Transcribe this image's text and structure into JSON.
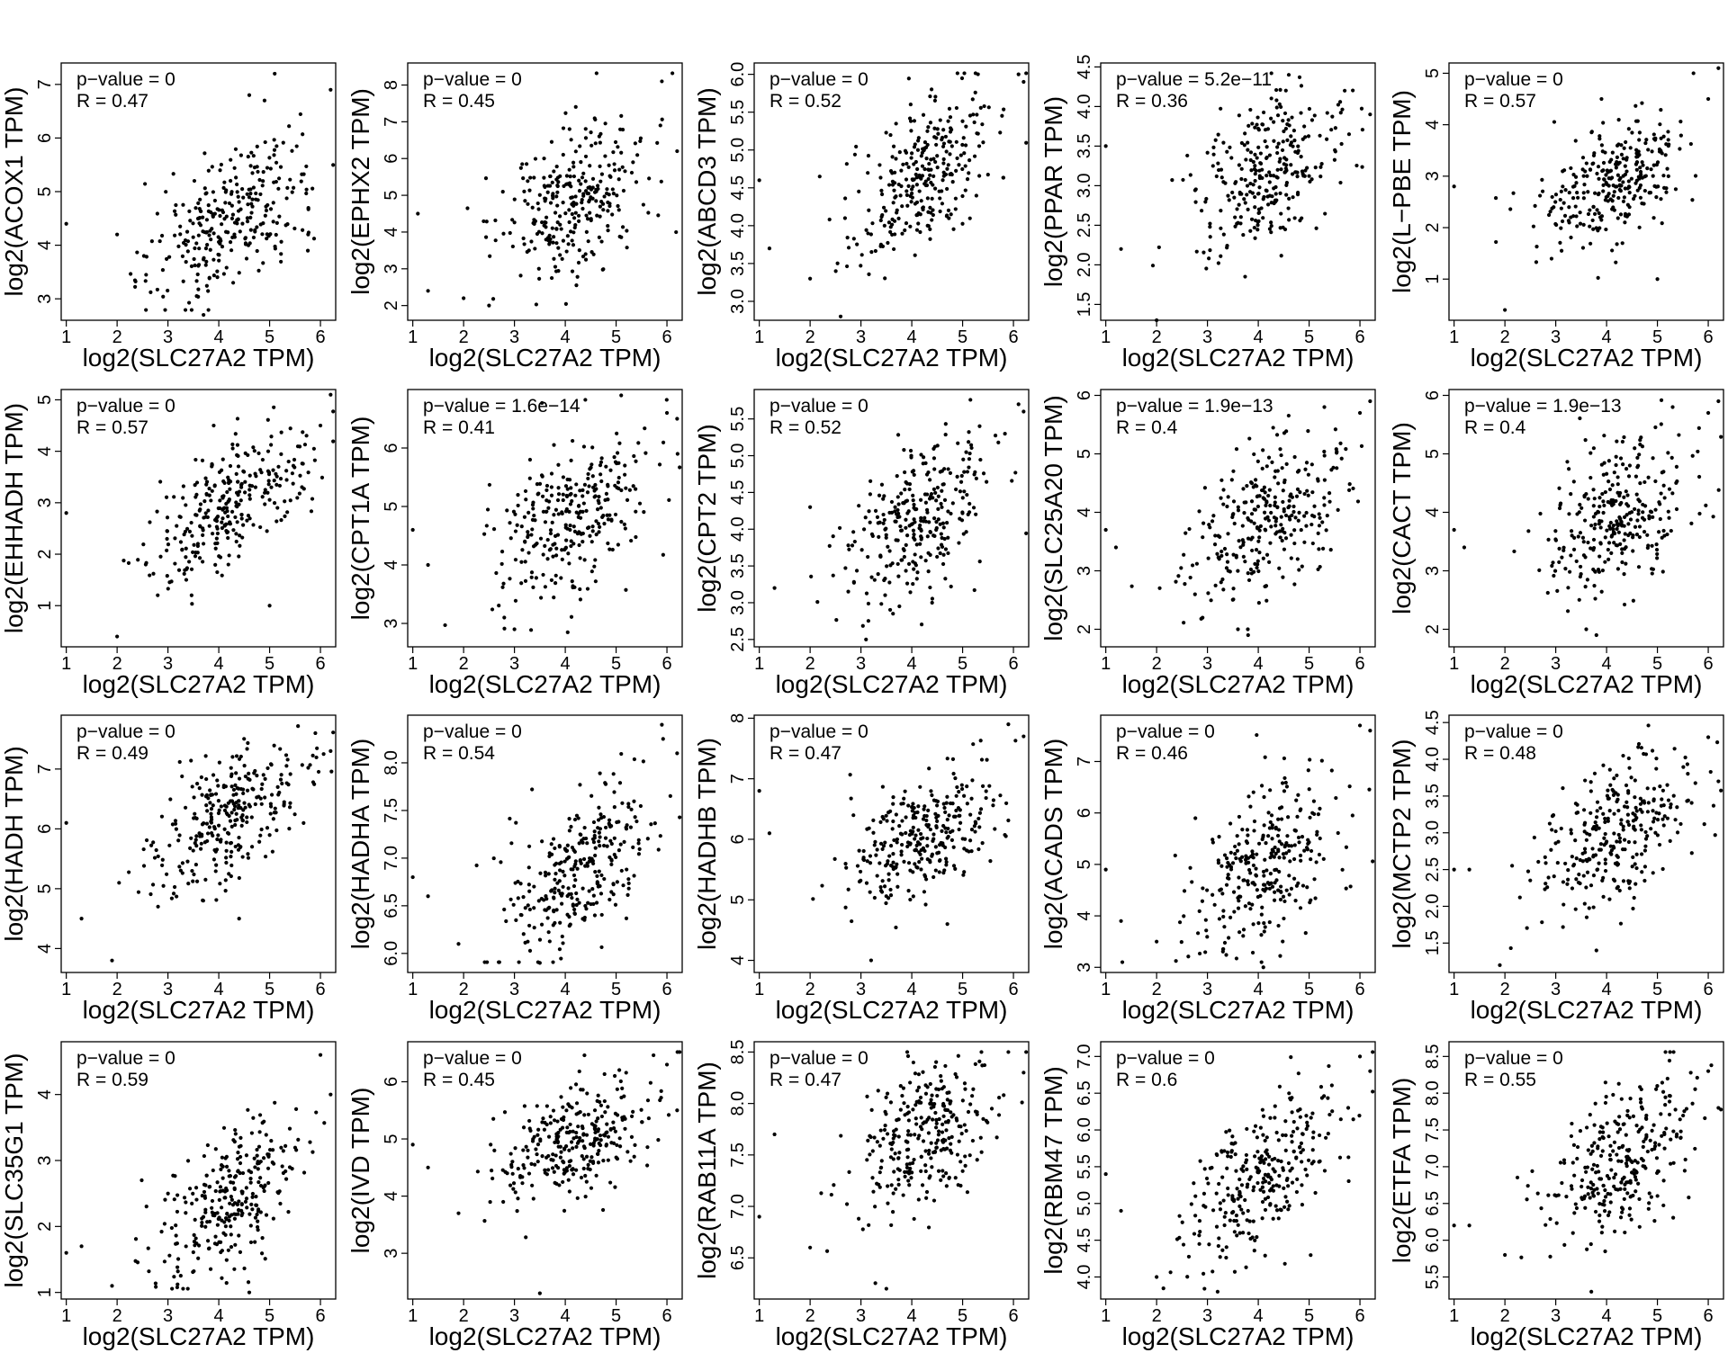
{
  "figure": {
    "x_label": "log2(SLC27A2 TPM)",
    "x_ticks": [
      1,
      2,
      3,
      4,
      5,
      6
    ],
    "point_color": "#000000"
  },
  "chart_data": [
    {
      "type": "scatter",
      "ylabel": "log2(ACOX1 TPM)",
      "pvalue_text": "p−value = 0",
      "r_text": "R = 0.47",
      "xlim": [
        0.9,
        6.3
      ],
      "ylim": [
        2.6,
        7.4
      ],
      "yticks": [
        3,
        4,
        5,
        6,
        7
      ],
      "r": 0.47,
      "center": {
        "x": 4.2,
        "y": 4.55
      },
      "spread": {
        "x": 0.75,
        "y": 0.7
      },
      "n": 290,
      "outliers": [
        [
          5.1,
          7.2
        ],
        [
          6.2,
          6.9
        ],
        [
          2.0,
          4.2
        ],
        [
          1.0,
          4.4
        ],
        [
          3.7,
          2.7
        ],
        [
          4.6,
          6.8
        ],
        [
          4.9,
          6.7
        ]
      ]
    },
    {
      "type": "scatter",
      "ylabel": "log2(EPHX2 TPM)",
      "pvalue_text": "p−value = 0",
      "r_text": "R = 0.45",
      "xlim": [
        0.9,
        6.3
      ],
      "ylim": [
        1.6,
        8.6
      ],
      "yticks": [
        2,
        3,
        4,
        5,
        6,
        7,
        8
      ],
      "r": 0.45,
      "center": {
        "x": 4.2,
        "y": 4.9
      },
      "spread": {
        "x": 0.75,
        "y": 1.05
      },
      "n": 290,
      "outliers": [
        [
          5.9,
          8.1
        ],
        [
          6.2,
          6.2
        ],
        [
          1.3,
          2.4
        ],
        [
          2.0,
          2.2
        ],
        [
          2.5,
          2.0
        ],
        [
          1.1,
          4.5
        ]
      ]
    },
    {
      "type": "scatter",
      "ylabel": "log2(ABCD3 TPM)",
      "pvalue_text": "p−value = 0",
      "r_text": "R = 0.52",
      "xlim": [
        0.9,
        6.3
      ],
      "ylim": [
        2.75,
        6.15
      ],
      "yticks": [
        3.0,
        3.5,
        4.0,
        4.5,
        5.0,
        5.5,
        6.0
      ],
      "r": 0.52,
      "center": {
        "x": 4.2,
        "y": 4.6
      },
      "spread": {
        "x": 0.75,
        "y": 0.6
      },
      "n": 290,
      "outliers": [
        [
          6.1,
          6.0
        ],
        [
          6.2,
          5.9
        ],
        [
          2.0,
          3.3
        ],
        [
          1.0,
          4.6
        ],
        [
          1.2,
          3.7
        ],
        [
          2.6,
          2.8
        ]
      ]
    },
    {
      "type": "scatter",
      "ylabel": "log2(PPAR TPM)",
      "pvalue_text": "p−value = 5.2e−11",
      "r_text": "R = 0.36",
      "xlim": [
        0.9,
        6.3
      ],
      "ylim": [
        1.3,
        4.55
      ],
      "yticks": [
        1.5,
        2.0,
        2.5,
        3.0,
        3.5,
        4.0,
        4.5
      ],
      "r": 0.36,
      "center": {
        "x": 4.2,
        "y": 3.2
      },
      "spread": {
        "x": 0.75,
        "y": 0.5
      },
      "n": 290,
      "outliers": [
        [
          1.0,
          3.5
        ],
        [
          1.3,
          2.2
        ],
        [
          2.0,
          1.3
        ],
        [
          6.2,
          3.9
        ],
        [
          5.7,
          4.2
        ],
        [
          4.6,
          4.4
        ]
      ]
    },
    {
      "type": "scatter",
      "ylabel": "log2(L−PBE TPM)",
      "pvalue_text": "p−value = 0",
      "r_text": "R = 0.57",
      "xlim": [
        0.9,
        6.3
      ],
      "ylim": [
        0.2,
        5.2
      ],
      "yticks": [
        1,
        2,
        3,
        4,
        5
      ],
      "r": 0.57,
      "center": {
        "x": 4.2,
        "y": 2.95
      },
      "spread": {
        "x": 0.75,
        "y": 0.7
      },
      "n": 290,
      "outliers": [
        [
          6.2,
          5.1
        ],
        [
          6.0,
          4.5
        ],
        [
          2.0,
          0.4
        ],
        [
          1.0,
          2.8
        ],
        [
          5.0,
          1.0
        ],
        [
          3.9,
          4.5
        ]
      ]
    },
    {
      "type": "scatter",
      "ylabel": "log2(EHHADH TPM)",
      "pvalue_text": "p−value = 0",
      "r_text": "R = 0.57",
      "xlim": [
        0.9,
        6.3
      ],
      "ylim": [
        0.2,
        5.2
      ],
      "yticks": [
        1,
        2,
        3,
        4,
        5
      ],
      "r": 0.57,
      "center": {
        "x": 4.2,
        "y": 2.95
      },
      "spread": {
        "x": 0.75,
        "y": 0.7
      },
      "n": 290,
      "outliers": [
        [
          6.2,
          5.1
        ],
        [
          6.0,
          4.5
        ],
        [
          2.0,
          0.4
        ],
        [
          1.0,
          2.8
        ],
        [
          5.0,
          1.0
        ],
        [
          3.9,
          4.5
        ]
      ]
    },
    {
      "type": "scatter",
      "ylabel": "log2(CPT1A TPM)",
      "pvalue_text": "p−value = 1.6e−14",
      "r_text": "R = 0.41",
      "xlim": [
        0.9,
        6.3
      ],
      "ylim": [
        2.6,
        7.0
      ],
      "yticks": [
        3,
        4,
        5,
        6
      ],
      "r": 0.41,
      "center": {
        "x": 4.2,
        "y": 4.85
      },
      "spread": {
        "x": 0.75,
        "y": 0.75
      },
      "n": 290,
      "outliers": [
        [
          6.0,
          6.6
        ],
        [
          6.2,
          6.5
        ],
        [
          1.0,
          4.6
        ],
        [
          1.3,
          4.0
        ],
        [
          2.8,
          3.1
        ],
        [
          3.0,
          2.9
        ],
        [
          5.1,
          6.9
        ]
      ]
    },
    {
      "type": "scatter",
      "ylabel": "log2(CPT2 TPM)",
      "pvalue_text": "p−value = 0",
      "r_text": "R = 0.52",
      "xlim": [
        0.9,
        6.3
      ],
      "ylim": [
        2.4,
        5.9
      ],
      "yticks": [
        2.5,
        3.0,
        3.5,
        4.0,
        4.5,
        5.0,
        5.5
      ],
      "r": 0.52,
      "center": {
        "x": 4.2,
        "y": 4.1
      },
      "spread": {
        "x": 0.75,
        "y": 0.6
      },
      "n": 290,
      "outliers": [
        [
          6.1,
          5.7
        ],
        [
          6.2,
          5.6
        ],
        [
          1.3,
          3.2
        ],
        [
          2.0,
          4.3
        ],
        [
          3.1,
          2.5
        ],
        [
          4.4,
          3.0
        ]
      ]
    },
    {
      "type": "scatter",
      "ylabel": "log2(SLC25A20 TPM)",
      "pvalue_text": "p−value = 1.9e−13",
      "r_text": "R = 0.4",
      "xlim": [
        0.9,
        6.3
      ],
      "ylim": [
        1.7,
        6.1
      ],
      "yticks": [
        2,
        3,
        4,
        5,
        6
      ],
      "r": 0.4,
      "center": {
        "x": 4.2,
        "y": 3.9
      },
      "spread": {
        "x": 0.75,
        "y": 0.7
      },
      "n": 290,
      "outliers": [
        [
          6.2,
          5.9
        ],
        [
          6.0,
          5.7
        ],
        [
          1.0,
          3.7
        ],
        [
          1.2,
          3.4
        ],
        [
          3.6,
          2.0
        ],
        [
          3.8,
          1.9
        ],
        [
          5.3,
          5.8
        ]
      ]
    },
    {
      "type": "scatter",
      "ylabel": "log2(CACT TPM)",
      "pvalue_text": "p−value = 1.9e−13",
      "r_text": "R = 0.4",
      "xlim": [
        0.9,
        6.3
      ],
      "ylim": [
        1.7,
        6.1
      ],
      "yticks": [
        2,
        3,
        4,
        5,
        6
      ],
      "r": 0.4,
      "center": {
        "x": 4.2,
        "y": 3.9
      },
      "spread": {
        "x": 0.75,
        "y": 0.7
      },
      "n": 290,
      "outliers": [
        [
          6.2,
          5.9
        ],
        [
          6.0,
          5.7
        ],
        [
          1.0,
          3.7
        ],
        [
          1.2,
          3.4
        ],
        [
          3.6,
          2.0
        ],
        [
          3.8,
          1.9
        ],
        [
          5.3,
          5.8
        ]
      ]
    },
    {
      "type": "scatter",
      "ylabel": "log2(HADH TPM)",
      "pvalue_text": "p−value = 0",
      "r_text": "R = 0.49",
      "xlim": [
        0.9,
        6.3
      ],
      "ylim": [
        3.6,
        7.9
      ],
      "yticks": [
        4,
        5,
        6,
        7
      ],
      "r": 0.49,
      "center": {
        "x": 4.2,
        "y": 6.1
      },
      "spread": {
        "x": 0.75,
        "y": 0.6
      },
      "n": 290,
      "outliers": [
        [
          5.9,
          7.6
        ],
        [
          6.2,
          7.3
        ],
        [
          1.0,
          6.1
        ],
        [
          1.3,
          4.5
        ],
        [
          1.9,
          3.8
        ],
        [
          4.4,
          4.5
        ]
      ]
    },
    {
      "type": "scatter",
      "ylabel": "log2(HADHA TPM)",
      "pvalue_text": "p−value = 0",
      "r_text": "R = 0.54",
      "xlim": [
        0.9,
        6.3
      ],
      "ylim": [
        5.8,
        8.5
      ],
      "yticks": [
        6.0,
        6.5,
        7.0,
        7.5,
        8.0
      ],
      "r": 0.54,
      "center": {
        "x": 4.2,
        "y": 6.85
      },
      "spread": {
        "x": 0.75,
        "y": 0.45
      },
      "n": 290,
      "outliers": [
        [
          5.9,
          8.4
        ],
        [
          6.2,
          8.1
        ],
        [
          1.0,
          6.8
        ],
        [
          1.3,
          6.6
        ],
        [
          1.9,
          6.1
        ],
        [
          3.5,
          5.9
        ]
      ]
    },
    {
      "type": "scatter",
      "ylabel": "log2(HADHB TPM)",
      "pvalue_text": "p−value = 0",
      "r_text": "R = 0.47",
      "xlim": [
        0.9,
        6.3
      ],
      "ylim": [
        3.8,
        8.05
      ],
      "yticks": [
        4,
        5,
        6,
        7,
        8
      ],
      "r": 0.47,
      "center": {
        "x": 4.2,
        "y": 6.05
      },
      "spread": {
        "x": 0.75,
        "y": 0.55
      },
      "n": 290,
      "outliers": [
        [
          5.9,
          7.9
        ],
        [
          6.2,
          7.7
        ],
        [
          1.0,
          6.8
        ],
        [
          1.2,
          6.1
        ],
        [
          3.2,
          4.0
        ],
        [
          4.7,
          4.6
        ]
      ]
    },
    {
      "type": "scatter",
      "ylabel": "log2(ACADS TPM)",
      "pvalue_text": "p−value = 0",
      "r_text": "R = 0.46",
      "xlim": [
        0.9,
        6.3
      ],
      "ylim": [
        2.9,
        7.9
      ],
      "yticks": [
        3,
        4,
        5,
        6,
        7
      ],
      "r": 0.46,
      "center": {
        "x": 4.1,
        "y": 4.9
      },
      "spread": {
        "x": 0.75,
        "y": 0.85
      },
      "n": 290,
      "outliers": [
        [
          6.0,
          7.7
        ],
        [
          6.2,
          7.6
        ],
        [
          1.0,
          4.9
        ],
        [
          1.3,
          3.9
        ],
        [
          2.0,
          3.5
        ],
        [
          4.1,
          3.0
        ]
      ]
    },
    {
      "type": "scatter",
      "ylabel": "log2(MCTP2 TPM)",
      "pvalue_text": "p−value = 0",
      "r_text": "R = 0.48",
      "xlim": [
        0.9,
        6.3
      ],
      "ylim": [
        1.1,
        4.6
      ],
      "yticks": [
        1.5,
        2.0,
        2.5,
        3.0,
        3.5,
        4.0,
        4.5
      ],
      "r": 0.48,
      "center": {
        "x": 4.2,
        "y": 3.0
      },
      "spread": {
        "x": 0.75,
        "y": 0.55
      },
      "n": 290,
      "outliers": [
        [
          6.0,
          4.3
        ],
        [
          6.2,
          3.7
        ],
        [
          1.0,
          2.5
        ],
        [
          1.3,
          2.5
        ],
        [
          1.9,
          1.2
        ],
        [
          3.8,
          1.4
        ]
      ]
    },
    {
      "type": "scatter",
      "ylabel": "log2(SLC35G1 TPM)",
      "pvalue_text": "p−value = 0",
      "r_text": "R = 0.59",
      "xlim": [
        0.9,
        6.3
      ],
      "ylim": [
        0.9,
        4.8
      ],
      "yticks": [
        1,
        2,
        3,
        4
      ],
      "r": 0.59,
      "center": {
        "x": 4.2,
        "y": 2.4
      },
      "spread": {
        "x": 0.75,
        "y": 0.65
      },
      "n": 290,
      "outliers": [
        [
          6.0,
          4.6
        ],
        [
          6.2,
          4.0
        ],
        [
          1.0,
          1.6
        ],
        [
          1.3,
          1.7
        ],
        [
          1.9,
          1.1
        ],
        [
          4.6,
          1.0
        ]
      ]
    },
    {
      "type": "scatter",
      "ylabel": "log2(IVD TPM)",
      "pvalue_text": "p−value = 0",
      "r_text": "R = 0.45",
      "xlim": [
        0.9,
        6.3
      ],
      "ylim": [
        2.2,
        6.7
      ],
      "yticks": [
        3,
        4,
        5,
        6
      ],
      "r": 0.45,
      "center": {
        "x": 4.2,
        "y": 4.95
      },
      "spread": {
        "x": 0.75,
        "y": 0.55
      },
      "n": 290,
      "outliers": [
        [
          6.0,
          6.3
        ],
        [
          6.2,
          5.5
        ],
        [
          1.0,
          4.9
        ],
        [
          1.3,
          4.5
        ],
        [
          1.9,
          3.7
        ],
        [
          3.5,
          2.3
        ]
      ]
    },
    {
      "type": "scatter",
      "ylabel": "log2(RAB11A TPM)",
      "pvalue_text": "p−value = 0",
      "r_text": "R = 0.47",
      "xlim": [
        0.9,
        6.3
      ],
      "ylim": [
        6.1,
        8.6
      ],
      "yticks": [
        6.5,
        7.0,
        7.5,
        8.0,
        8.5
      ],
      "r": 0.47,
      "center": {
        "x": 4.2,
        "y": 7.65
      },
      "spread": {
        "x": 0.75,
        "y": 0.4
      },
      "n": 290,
      "outliers": [
        [
          5.9,
          8.5
        ],
        [
          6.2,
          8.3
        ],
        [
          1.0,
          6.9
        ],
        [
          1.3,
          7.7
        ],
        [
          2.0,
          6.6
        ],
        [
          3.5,
          6.2
        ]
      ]
    },
    {
      "type": "scatter",
      "ylabel": "log2(RBM47 TPM)",
      "pvalue_text": "p−value = 0",
      "r_text": "R = 0.6",
      "xlim": [
        0.9,
        6.3
      ],
      "ylim": [
        3.7,
        7.2
      ],
      "yticks": [
        4.0,
        4.5,
        5.0,
        5.5,
        6.0,
        6.5,
        7.0
      ],
      "r": 0.6,
      "center": {
        "x": 4.2,
        "y": 5.4
      },
      "spread": {
        "x": 0.75,
        "y": 0.6
      },
      "n": 290,
      "outliers": [
        [
          6.0,
          7.0
        ],
        [
          6.2,
          6.8
        ],
        [
          1.0,
          5.4
        ],
        [
          1.3,
          4.9
        ],
        [
          2.0,
          4.0
        ],
        [
          3.2,
          3.8
        ]
      ]
    },
    {
      "type": "scatter",
      "ylabel": "log2(ETFA TPM)",
      "pvalue_text": "p−value = 0",
      "r_text": "R = 0.55",
      "xlim": [
        0.9,
        6.3
      ],
      "ylim": [
        5.2,
        8.7
      ],
      "yticks": [
        5.5,
        6.0,
        6.5,
        7.0,
        7.5,
        8.0,
        8.5
      ],
      "r": 0.55,
      "center": {
        "x": 4.3,
        "y": 7.1
      },
      "spread": {
        "x": 0.75,
        "y": 0.55
      },
      "n": 290,
      "outliers": [
        [
          6.0,
          8.3
        ],
        [
          6.2,
          7.8
        ],
        [
          1.0,
          6.2
        ],
        [
          1.3,
          6.2
        ],
        [
          2.0,
          5.8
        ],
        [
          3.7,
          5.3
        ]
      ]
    }
  ]
}
